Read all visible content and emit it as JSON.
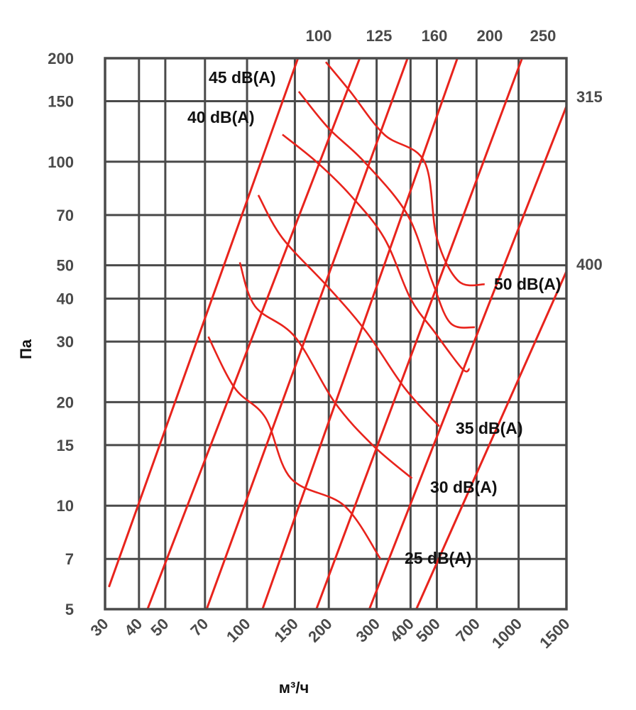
{
  "chart_data": {
    "type": "line",
    "x_scale": "log",
    "y_scale": "log",
    "xlabel": "м³/ч",
    "ylabel": "Па",
    "xlim": [
      30,
      1500
    ],
    "ylim": [
      5,
      200
    ],
    "x_ticks": [
      "30",
      "40",
      "50",
      "70",
      "100",
      "150",
      "200",
      "300",
      "400",
      "500",
      "700",
      "1000",
      "1500"
    ],
    "x_tick_values": [
      30,
      40,
      50,
      70,
      100,
      150,
      200,
      300,
      400,
      500,
      700,
      1000,
      1500
    ],
    "y_ticks": [
      "200",
      "150",
      "100",
      "70",
      "50",
      "40",
      "30",
      "20",
      "15",
      "10",
      "7",
      "5"
    ],
    "y_tick_values": [
      200,
      150,
      100,
      70,
      50,
      40,
      30,
      20,
      15,
      10,
      7,
      5
    ],
    "grid": true,
    "colors": {
      "curve": "#e8231c",
      "grid": "#4a4a4a",
      "tick_text": "#4a4a4a",
      "label_text": "#111111"
    },
    "duct_lines": [
      {
        "name": "100",
        "points": [
          [
            31,
            5.8
          ],
          [
            154,
            200
          ]
        ]
      },
      {
        "name": "125",
        "points": [
          [
            43,
            5
          ],
          [
            260,
            200
          ]
        ]
      },
      {
        "name": "160",
        "points": [
          [
            71,
            5
          ],
          [
            390,
            200
          ]
        ]
      },
      {
        "name": "200",
        "points": [
          [
            114,
            5
          ],
          [
            595,
            200
          ]
        ]
      },
      {
        "name": "250",
        "points": [
          [
            180,
            5
          ],
          [
            1030,
            200
          ]
        ]
      },
      {
        "name": "315",
        "points": [
          [
            282,
            5
          ],
          [
            1500,
            145
          ]
        ]
      },
      {
        "name": "400",
        "points": [
          [
            420,
            5
          ],
          [
            1500,
            48
          ]
        ]
      }
    ],
    "noise_curves": [
      {
        "label": "25 dB(A)",
        "points": [
          [
            72,
            31
          ],
          [
            90,
            22
          ],
          [
            117,
            18
          ],
          [
            145,
            12
          ],
          [
            228,
            10
          ],
          [
            310,
            7
          ]
        ]
      },
      {
        "label": "30 dB(A)",
        "points": [
          [
            94,
            51
          ],
          [
            107,
            38
          ],
          [
            150,
            31
          ],
          [
            210,
            20
          ],
          [
            290,
            15
          ],
          [
            405,
            12
          ]
        ]
      },
      {
        "label": "35 dB(A)",
        "points": [
          [
            110,
            80
          ],
          [
            135,
            60
          ],
          [
            200,
            43
          ],
          [
            275,
            32
          ],
          [
            380,
            22
          ],
          [
            510,
            17
          ]
        ]
      },
      {
        "label": "40 dB(A)",
        "points": [
          [
            135,
            120
          ],
          [
            180,
            100
          ],
          [
            240,
            80
          ],
          [
            320,
            60
          ],
          [
            400,
            40
          ],
          [
            490,
            32
          ],
          [
            620,
            25
          ],
          [
            660,
            25
          ]
        ]
      },
      {
        "label": "45 dB(A)",
        "points": [
          [
            155,
            160
          ],
          [
            200,
            125
          ],
          [
            270,
            100
          ],
          [
            390,
            70
          ],
          [
            480,
            45
          ],
          [
            560,
            34
          ],
          [
            690,
            33
          ]
        ]
      },
      {
        "label": "50 dB(A)",
        "points": [
          [
            195,
            195
          ],
          [
            240,
            160
          ],
          [
            320,
            120
          ],
          [
            450,
            100
          ],
          [
            500,
            60
          ],
          [
            600,
            45
          ],
          [
            750,
            44
          ]
        ]
      }
    ],
    "noise_labels": [
      "25 dB(A)",
      "30 dB(A)",
      "35 dB(A)",
      "40 dB(A)",
      "45 dB(A)",
      "50 dB(A)"
    ]
  }
}
